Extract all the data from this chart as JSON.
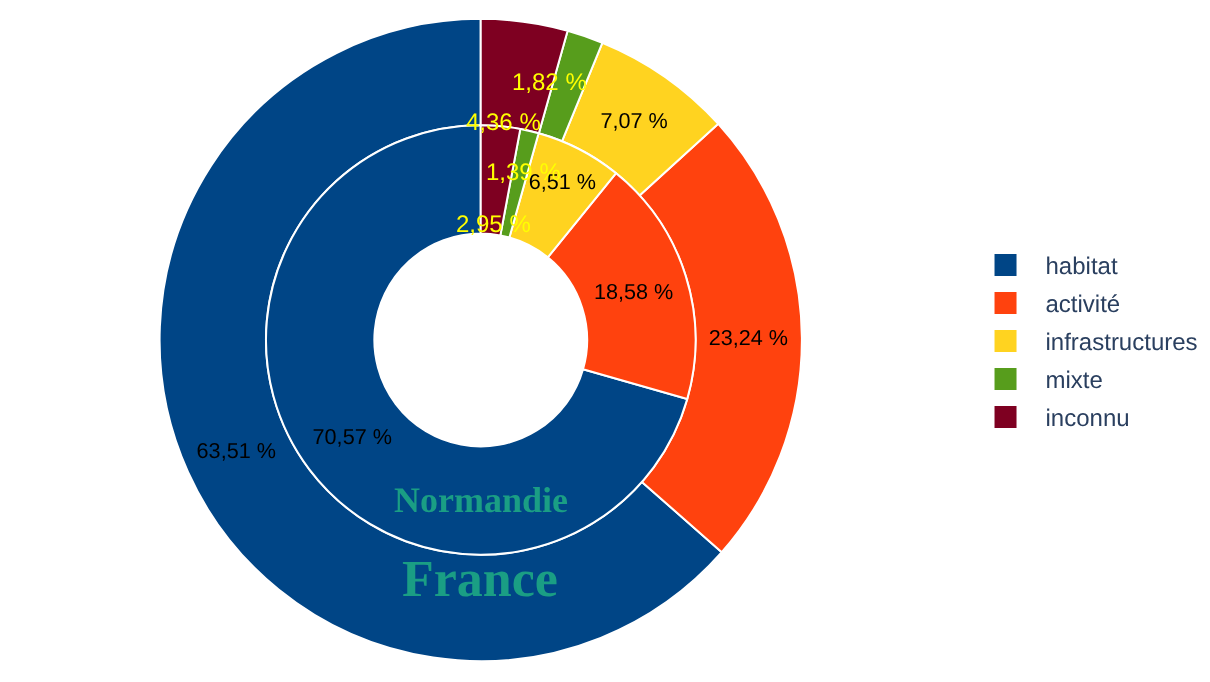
{
  "chart_data": {
    "type": "donut",
    "categories": [
      "habitat",
      "activité",
      "infrastructures",
      "mixte",
      "inconnu"
    ],
    "colors": [
      "#004586",
      "#ff420e",
      "#ffd320",
      "#579d1c",
      "#7e0021"
    ],
    "series": [
      {
        "name": "France",
        "values": [
          63.51,
          23.24,
          7.07,
          1.82,
          4.36
        ],
        "value_labels": [
          "63,51 %",
          "23,24 %",
          "7,07 %",
          "1,82 %",
          "4,36 %"
        ]
      },
      {
        "name": "Normandie",
        "values": [
          70.57,
          18.58,
          6.51,
          1.39,
          2.95
        ],
        "value_labels": [
          "70,57 %",
          "18,58 %",
          "6,51 %",
          "1,39 %",
          "2,95 %"
        ]
      }
    ],
    "legend": "right"
  }
}
